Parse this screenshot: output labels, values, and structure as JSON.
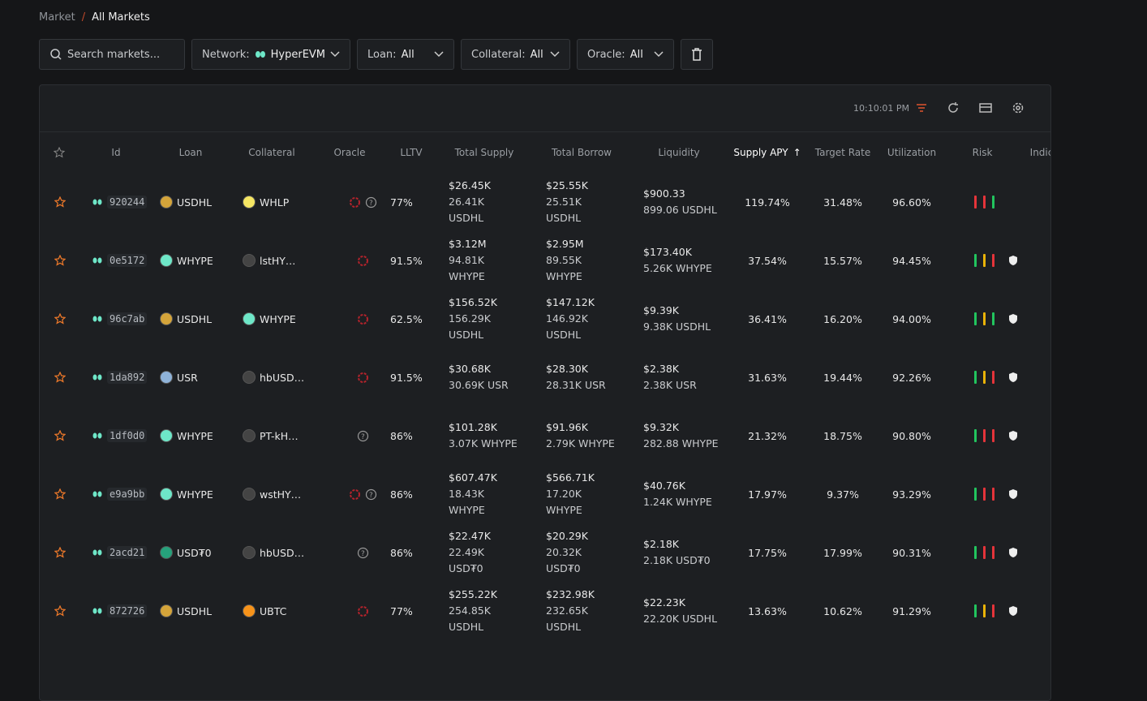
{
  "breadcrumb": {
    "items": [
      "Market",
      "All Markets"
    ],
    "separator": "/"
  },
  "filters": {
    "search": "Search markets...",
    "network": {
      "label": "Network:",
      "value": "HyperEVM"
    },
    "loan": {
      "label": "Loan:",
      "value": "All"
    },
    "collateral": {
      "label": "Collateral:",
      "value": "All"
    },
    "oracle": {
      "label": "Oracle:",
      "value": "All"
    }
  },
  "toolbar": {
    "time": "10:10:01 PM"
  },
  "table": {
    "columns": [
      "Id",
      "Loan",
      "Collateral",
      "Oracle",
      "LLTV",
      "Total Supply",
      "Total Borrow",
      "Liquidity",
      "Supply APY",
      "Target Rate",
      "Utilization",
      "Risk",
      "Indic"
    ],
    "rows": [
      {
        "id": "920244",
        "loan": "USDHL",
        "collateral": "WHLP",
        "oracle": [
          "red",
          "question"
        ],
        "lltv": "77%",
        "supply": "$26.45K",
        "supply_native": "26.41K USDHL",
        "borrow": "$25.55K",
        "borrow_native": "25.51K USDHL",
        "liquidity": "$900.33",
        "liquidity_native": "899.06 USDHL",
        "apy": "119.74%",
        "target": "31.48%",
        "utilization": "96.60%",
        "risk": [
          "#e5343a",
          "#e5343a",
          "#22c55e"
        ],
        "shield": false
      },
      {
        "id": "0e5172",
        "loan": "WHYPE",
        "collateral": "lstHY…",
        "oracle": [
          "red"
        ],
        "lltv": "91.5%",
        "supply": "$3.12M",
        "supply_native": "94.81K WHYPE",
        "borrow": "$2.95M",
        "borrow_native": "89.55K WHYPE",
        "liquidity": "$173.40K",
        "liquidity_native": "5.26K WHYPE",
        "apy": "37.54%",
        "target": "15.57%",
        "utilization": "94.45%",
        "risk": [
          "#22c55e",
          "#eab308",
          "#e5343a"
        ],
        "shield": true
      },
      {
        "id": "96c7ab",
        "loan": "USDHL",
        "collateral": "WHYPE",
        "oracle": [
          "red"
        ],
        "lltv": "62.5%",
        "supply": "$156.52K",
        "supply_native": "156.29K USDHL",
        "borrow": "$147.12K",
        "borrow_native": "146.92K USDHL",
        "liquidity": "$9.39K",
        "liquidity_native": "9.38K USDHL",
        "apy": "36.41%",
        "target": "16.20%",
        "utilization": "94.00%",
        "risk": [
          "#22c55e",
          "#eab308",
          "#22c55e"
        ],
        "shield": true
      },
      {
        "id": "1da892",
        "loan": "USR",
        "collateral": "hbUSD…",
        "oracle": [
          "red"
        ],
        "lltv": "91.5%",
        "supply": "$30.68K",
        "supply_native": "30.69K USR",
        "borrow": "$28.30K",
        "borrow_native": "28.31K USR",
        "liquidity": "$2.38K",
        "liquidity_native": "2.38K USR",
        "apy": "31.63%",
        "target": "19.44%",
        "utilization": "92.26%",
        "risk": [
          "#22c55e",
          "#eab308",
          "#e5343a"
        ],
        "shield": true
      },
      {
        "id": "1df0d0",
        "loan": "WHYPE",
        "collateral": "PT-kH…",
        "oracle": [
          "question"
        ],
        "lltv": "86%",
        "supply": "$101.28K",
        "supply_native": "3.07K WHYPE",
        "borrow": "$91.96K",
        "borrow_native": "2.79K WHYPE",
        "liquidity": "$9.32K",
        "liquidity_native": "282.88 WHYPE",
        "apy": "21.32%",
        "target": "18.75%",
        "utilization": "90.80%",
        "risk": [
          "#22c55e",
          "#e5343a",
          "#e5343a"
        ],
        "shield": true
      },
      {
        "id": "e9a9bb",
        "loan": "WHYPE",
        "collateral": "wstHY…",
        "oracle": [
          "red",
          "question"
        ],
        "lltv": "86%",
        "supply": "$607.47K",
        "supply_native": "18.43K WHYPE",
        "borrow": "$566.71K",
        "borrow_native": "17.20K WHYPE",
        "liquidity": "$40.76K",
        "liquidity_native": "1.24K WHYPE",
        "apy": "17.97%",
        "target": "9.37%",
        "utilization": "93.29%",
        "risk": [
          "#22c55e",
          "#e5343a",
          "#e5343a"
        ],
        "shield": true
      },
      {
        "id": "2acd21",
        "loan": "USD₮0",
        "collateral": "hbUSD…",
        "oracle": [
          "question"
        ],
        "lltv": "86%",
        "supply": "$22.47K",
        "supply_native": "22.49K USD₮0",
        "borrow": "$20.29K",
        "borrow_native": "20.32K USD₮0",
        "liquidity": "$2.18K",
        "liquidity_native": "2.18K USD₮0",
        "apy": "17.75%",
        "target": "17.99%",
        "utilization": "90.31%",
        "risk": [
          "#22c55e",
          "#e5343a",
          "#e5343a"
        ],
        "shield": true
      },
      {
        "id": "872726",
        "loan": "USDHL",
        "collateral": "UBTC",
        "oracle": [
          "red"
        ],
        "lltv": "77%",
        "supply": "$255.22K",
        "supply_native": "254.85K USDHL",
        "borrow": "$232.98K",
        "borrow_native": "232.65K USDHL",
        "liquidity": "$22.23K",
        "liquidity_native": "22.20K USDHL",
        "apy": "13.63%",
        "target": "10.62%",
        "utilization": "91.29%",
        "risk": [
          "#22c55e",
          "#eab308",
          "#e5343a"
        ],
        "shield": true
      }
    ]
  }
}
